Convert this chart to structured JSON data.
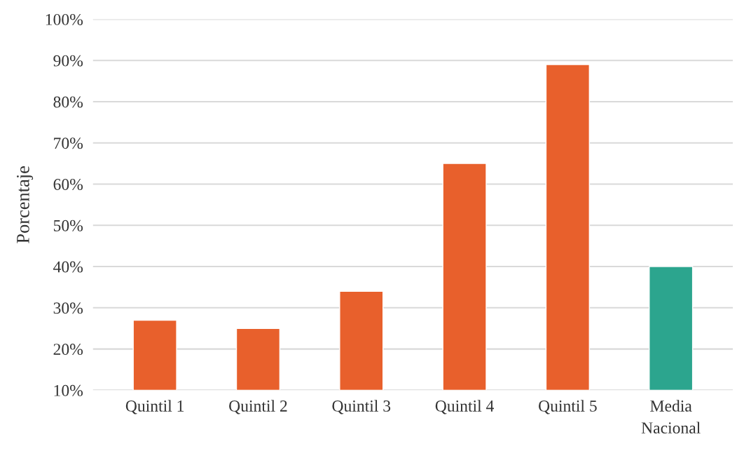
{
  "chart_data": {
    "type": "bar",
    "ylabel": "Porcentaje",
    "categories": [
      "Quintil 1",
      "Quintil 2",
      "Quintil 3",
      "Quintil 4",
      "Quintil 5",
      "Media Nacional"
    ],
    "values": [
      27,
      25,
      34,
      65,
      89,
      40
    ],
    "colors": [
      "#e8602c",
      "#e8602c",
      "#e8602c",
      "#e8602c",
      "#e8602c",
      "#2ca58e"
    ],
    "ylim": [
      10,
      100
    ],
    "yticks": [
      {
        "value": 10,
        "label": "10%"
      },
      {
        "value": 20,
        "label": "20%"
      },
      {
        "value": 30,
        "label": "30%"
      },
      {
        "value": 40,
        "label": "40%"
      },
      {
        "value": 50,
        "label": "50%"
      },
      {
        "value": 60,
        "label": "60%"
      },
      {
        "value": 70,
        "label": "70%"
      },
      {
        "value": 80,
        "label": "80%"
      },
      {
        "value": 90,
        "label": "90%"
      },
      {
        "value": 100,
        "label": "100%"
      }
    ],
    "grid": "y",
    "legend": false
  }
}
